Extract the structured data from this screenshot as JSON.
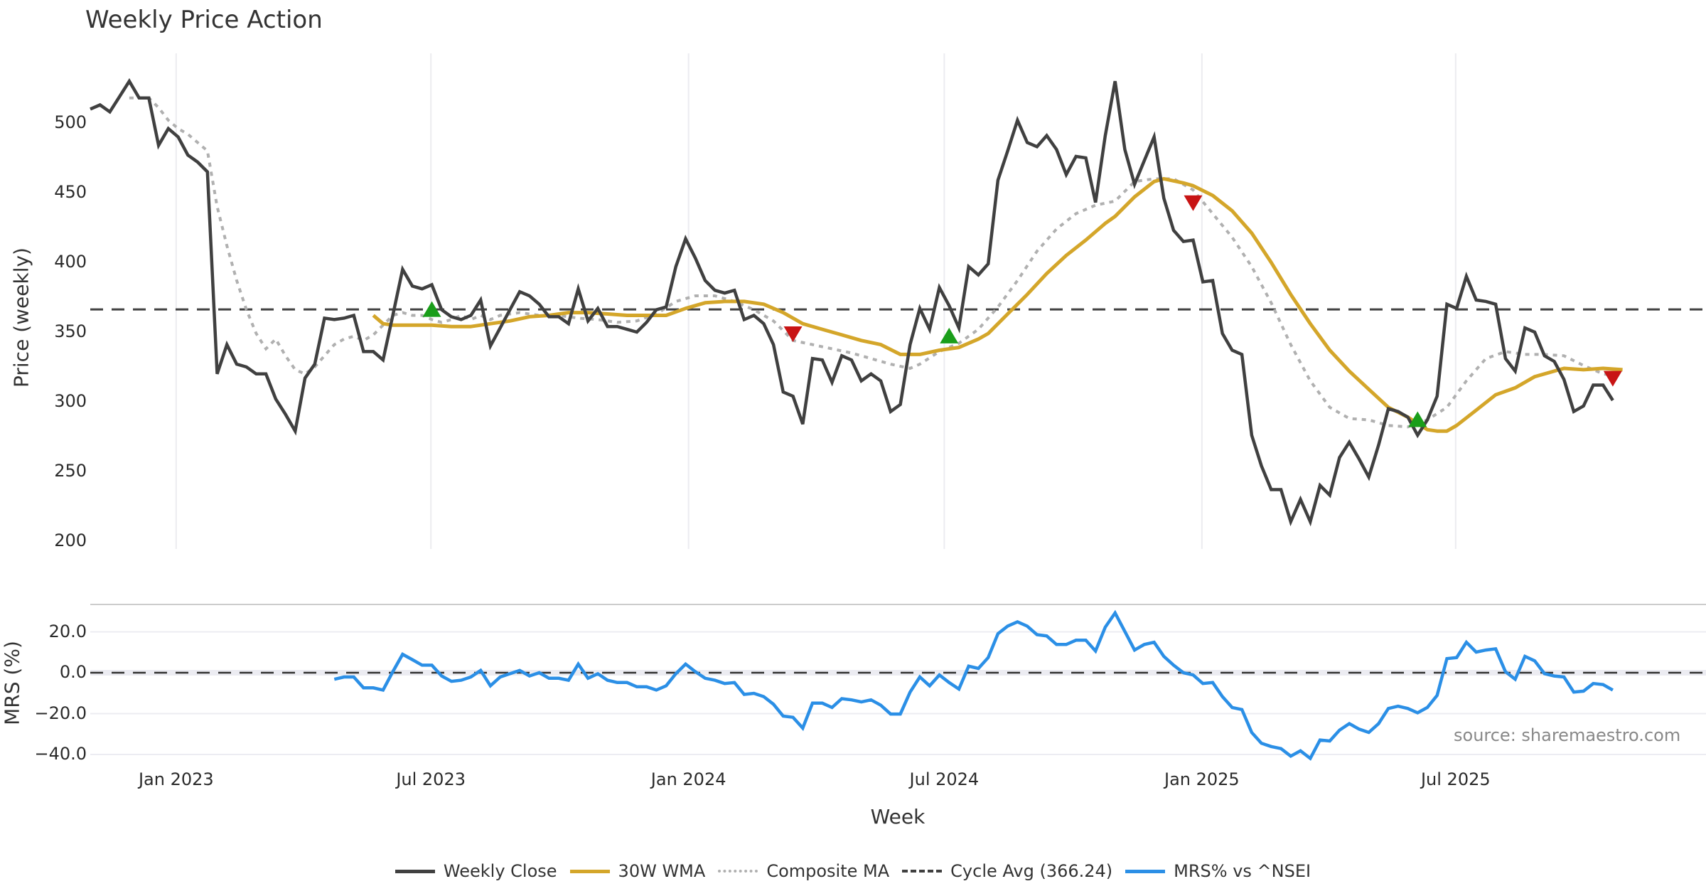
{
  "chart_data": {
    "type": "line",
    "title": "Weekly Price Action",
    "xlabel": "Week",
    "ylabel": "Price (weekly)",
    "ylabel_lower": "MRS (%)",
    "x_unit": "week index (0 = first plotted week)",
    "xlim": [
      0,
      157
    ],
    "ylim": [
      200,
      540
    ],
    "ylim_lower": [
      -45,
      32
    ],
    "yticks": [
      200,
      250,
      300,
      350,
      400,
      450,
      500
    ],
    "yticks_lower": [
      {
        "value": 20,
        "label": "20.0"
      },
      {
        "value": 0,
        "label": "0.0"
      },
      {
        "value": -20,
        "label": "−20.0"
      },
      {
        "value": -40,
        "label": "−40.0"
      }
    ],
    "xticks": [
      {
        "week": 8.8,
        "label": "Jan 2023"
      },
      {
        "week": 34.9,
        "label": "Jul 2023"
      },
      {
        "week": 61.3,
        "label": "Jan 2024"
      },
      {
        "week": 87.5,
        "label": "Jul 2024"
      },
      {
        "week": 113.9,
        "label": "Jan 2025"
      },
      {
        "week": 139.9,
        "label": "Jul 2025"
      }
    ],
    "grid": "vertical on x ticks (price panel), horizontal on y ticks (MRS panel)",
    "legend_position": "bottom-center",
    "source_note": "source: sharemaestro.com",
    "cycle_avg": 366.24,
    "series": [
      {
        "name": "Weekly Close",
        "color": "#404040",
        "style": "solid",
        "start_week": 0,
        "values": [
          510,
          513,
          508,
          519,
          530,
          518,
          518,
          484,
          496,
          490,
          477,
          472,
          465,
          320,
          341,
          327,
          325,
          320,
          320,
          302,
          291,
          279,
          317,
          327,
          360,
          359,
          360,
          362,
          336,
          336,
          330,
          362,
          395,
          383,
          381,
          384,
          366,
          361,
          359,
          362,
          373,
          340,
          353,
          366,
          379,
          376,
          370,
          361,
          361,
          356,
          381,
          358,
          367,
          354,
          354,
          352,
          350,
          357,
          366,
          368,
          397,
          417,
          403,
          387,
          380,
          378,
          380,
          359,
          362,
          356,
          341,
          307,
          304,
          284,
          331,
          330,
          314,
          333,
          330,
          315,
          320,
          315,
          293,
          298,
          341,
          367,
          352,
          382,
          369,
          353,
          397,
          391,
          399,
          459,
          480,
          502,
          486,
          483,
          491,
          481,
          463,
          476,
          475,
          443,
          491,
          530,
          481,
          456,
          473,
          490,
          446,
          423,
          415,
          416,
          386,
          387,
          349,
          337,
          334,
          276,
          254,
          237,
          237,
          214,
          230,
          214,
          240,
          233,
          260,
          271,
          259,
          246,
          269,
          295,
          293,
          289,
          276,
          287,
          304,
          370,
          367,
          390,
          373,
          372,
          370,
          331,
          322,
          353,
          350,
          333,
          329,
          316,
          293,
          297,
          312,
          312,
          301
        ]
      },
      {
        "name": "30W WMA",
        "color": "#d4a62a",
        "style": "solid",
        "points": [
          [
            29,
            362
          ],
          [
            30,
            356
          ],
          [
            31,
            355
          ],
          [
            33,
            355
          ],
          [
            35,
            355
          ],
          [
            37,
            354
          ],
          [
            39,
            354
          ],
          [
            41,
            356
          ],
          [
            43,
            358
          ],
          [
            45,
            361
          ],
          [
            47,
            362
          ],
          [
            49,
            364
          ],
          [
            51,
            364
          ],
          [
            53,
            363
          ],
          [
            55,
            362
          ],
          [
            57,
            362
          ],
          [
            59,
            362
          ],
          [
            61,
            367
          ],
          [
            63,
            371
          ],
          [
            65,
            372
          ],
          [
            67,
            372
          ],
          [
            69,
            370
          ],
          [
            71,
            364
          ],
          [
            73,
            356
          ],
          [
            75,
            352
          ],
          [
            77,
            348
          ],
          [
            79,
            344
          ],
          [
            81,
            341
          ],
          [
            83,
            334
          ],
          [
            85,
            334
          ],
          [
            87,
            337
          ],
          [
            89,
            339
          ],
          [
            91,
            345
          ],
          [
            92,
            349
          ],
          [
            94,
            363
          ],
          [
            96,
            377
          ],
          [
            98,
            392
          ],
          [
            100,
            405
          ],
          [
            102,
            416
          ],
          [
            104,
            428
          ],
          [
            105,
            433
          ],
          [
            107,
            447
          ],
          [
            109,
            458
          ],
          [
            110,
            460
          ],
          [
            112,
            457
          ],
          [
            113,
            455
          ],
          [
            115,
            448
          ],
          [
            117,
            437
          ],
          [
            119,
            421
          ],
          [
            121,
            400
          ],
          [
            123,
            377
          ],
          [
            125,
            356
          ],
          [
            127,
            337
          ],
          [
            129,
            322
          ],
          [
            131,
            309
          ],
          [
            133,
            296
          ],
          [
            135,
            289
          ],
          [
            137,
            280
          ],
          [
            138,
            279
          ],
          [
            139,
            279
          ],
          [
            140,
            283
          ],
          [
            142,
            294
          ],
          [
            144,
            305
          ],
          [
            146,
            310
          ],
          [
            148,
            318
          ],
          [
            150,
            322
          ],
          [
            151,
            324
          ],
          [
            153,
            323
          ],
          [
            155,
            324
          ],
          [
            157,
            323
          ]
        ]
      },
      {
        "name": "Composite MA",
        "color": "#b0b0b0",
        "style": "dotted",
        "points": [
          [
            4,
            518
          ],
          [
            6,
            518
          ],
          [
            7,
            511
          ],
          [
            8,
            502
          ],
          [
            9,
            496
          ],
          [
            10,
            492
          ],
          [
            11,
            486
          ],
          [
            12,
            480
          ],
          [
            13,
            440
          ],
          [
            14,
            412
          ],
          [
            15,
            387
          ],
          [
            16,
            366
          ],
          [
            17,
            349
          ],
          [
            18,
            338
          ],
          [
            19,
            345
          ],
          [
            20,
            333
          ],
          [
            21,
            323
          ],
          [
            22,
            320
          ],
          [
            23,
            325
          ],
          [
            24,
            333
          ],
          [
            25,
            341
          ],
          [
            26,
            345
          ],
          [
            27,
            347
          ],
          [
            28,
            344
          ],
          [
            29,
            348
          ],
          [
            30,
            355
          ],
          [
            31,
            362
          ],
          [
            32,
            364
          ],
          [
            33,
            362
          ],
          [
            34,
            362
          ],
          [
            35,
            359
          ],
          [
            36,
            357
          ],
          [
            37,
            359
          ],
          [
            38,
            362
          ],
          [
            39,
            359
          ],
          [
            40,
            362
          ],
          [
            41,
            359
          ],
          [
            42,
            362
          ],
          [
            44,
            364
          ],
          [
            46,
            362
          ],
          [
            48,
            362
          ],
          [
            50,
            360
          ],
          [
            52,
            359
          ],
          [
            54,
            357
          ],
          [
            56,
            358
          ],
          [
            58,
            363
          ],
          [
            60,
            372
          ],
          [
            62,
            376
          ],
          [
            64,
            376
          ],
          [
            66,
            372
          ],
          [
            68,
            366
          ],
          [
            70,
            358
          ],
          [
            72,
            344
          ],
          [
            74,
            341
          ],
          [
            76,
            338
          ],
          [
            78,
            335
          ],
          [
            80,
            331
          ],
          [
            82,
            327
          ],
          [
            84,
            324
          ],
          [
            85,
            327
          ],
          [
            87,
            336
          ],
          [
            89,
            342
          ],
          [
            91,
            352
          ],
          [
            93,
            368
          ],
          [
            95,
            387
          ],
          [
            97,
            408
          ],
          [
            99,
            424
          ],
          [
            101,
            435
          ],
          [
            103,
            441
          ],
          [
            105,
            444
          ],
          [
            107,
            458
          ],
          [
            109,
            460
          ],
          [
            111,
            460
          ],
          [
            113,
            452
          ],
          [
            115,
            435
          ],
          [
            117,
            418
          ],
          [
            119,
            397
          ],
          [
            121,
            371
          ],
          [
            123,
            341
          ],
          [
            125,
            315
          ],
          [
            127,
            296
          ],
          [
            129,
            288
          ],
          [
            131,
            287
          ],
          [
            133,
            283
          ],
          [
            135,
            282
          ],
          [
            137,
            287
          ],
          [
            139,
            296
          ],
          [
            141,
            315
          ],
          [
            143,
            331
          ],
          [
            145,
            336
          ],
          [
            147,
            334
          ],
          [
            149,
            334
          ],
          [
            151,
            333
          ],
          [
            153,
            326
          ],
          [
            155,
            320
          ],
          [
            157,
            318
          ]
        ]
      },
      {
        "name": "Cycle Avg (366.24)",
        "color": "#404040",
        "style": "dashed",
        "value": 366.24
      },
      {
        "name": "MRS% vs ^NSEI",
        "color": "#2b8fe6",
        "style": "solid",
        "panel": "lower",
        "start_week": 25,
        "values": [
          -3.2,
          -2.1,
          -2.1,
          -7.4,
          -7.4,
          -8.5,
          0.5,
          9.0,
          6.4,
          3.7,
          3.7,
          -1.6,
          -4.2,
          -3.7,
          -2.1,
          1.1,
          -6.4,
          -2.1,
          -0.5,
          1.1,
          -1.6,
          0,
          -2.7,
          -2.7,
          -3.7,
          4.2,
          -2.7,
          -0.5,
          -3.7,
          -4.8,
          -4.8,
          -6.9,
          -6.9,
          -8.5,
          -6.4,
          -0.5,
          4.2,
          0.5,
          -2.7,
          -3.7,
          -5.3,
          -4.8,
          -10.6,
          -10.1,
          -11.7,
          -15.4,
          -21.2,
          -21.8,
          -27.1,
          -14.9,
          -14.9,
          -17.0,
          -12.7,
          -13.3,
          -14.3,
          -13.3,
          -15.9,
          -20.2,
          -20.2,
          -9.5,
          -2.1,
          -6.4,
          -1.1,
          -4.8,
          -8.0,
          3.2,
          2.1,
          7.4,
          19.1,
          22.8,
          24.9,
          22.8,
          18.6,
          18.0,
          13.8,
          13.8,
          15.9,
          15.9,
          10.6,
          22.3,
          29.2,
          20.2,
          11.1,
          13.8,
          14.9,
          8.0,
          3.7,
          0,
          -1.1,
          -5.3,
          -4.8,
          -11.7,
          -17.0,
          -18.0,
          -29.2,
          -34.5,
          -36.1,
          -37.1,
          -40.8,
          -38.2,
          -41.9,
          -32.9,
          -33.4,
          -28.1,
          -24.9,
          -27.6,
          -29.2,
          -24.9,
          -17.5,
          -16.4,
          -17.5,
          -19.6,
          -17.0,
          -11.1,
          6.9,
          7.4,
          14.9,
          10.1,
          11.1,
          11.7,
          0.5,
          -3.2,
          8.0,
          5.8,
          -0.5,
          -1.6,
          -2.1,
          -9.5,
          -9.0,
          -5.3,
          -5.8,
          -8.5
        ]
      }
    ],
    "zero_line_lower": 0,
    "signals": [
      {
        "type": "buy",
        "week": 35,
        "price": 366,
        "color": "#1a9e1a"
      },
      {
        "type": "sell",
        "week": 72,
        "price": 349,
        "color": "#c81414"
      },
      {
        "type": "buy",
        "week": 88,
        "price": 347,
        "color": "#1a9e1a"
      },
      {
        "type": "sell",
        "week": 113,
        "price": 443,
        "color": "#c81414"
      },
      {
        "type": "buy",
        "week": 136,
        "price": 287,
        "color": "#1a9e1a"
      },
      {
        "type": "sell",
        "week": 156,
        "price": 317,
        "color": "#c81414"
      }
    ]
  },
  "legend": [
    {
      "label": "Weekly Close",
      "color": "#404040",
      "style": "solid"
    },
    {
      "label": "30W WMA",
      "color": "#d4a62a",
      "style": "solid"
    },
    {
      "label": "Composite MA",
      "color": "#b0b0b0",
      "style": "dotted"
    },
    {
      "label": "Cycle Avg (366.24)",
      "color": "#404040",
      "style": "dashed"
    },
    {
      "label": "MRS% vs ^NSEI",
      "color": "#2b8fe6",
      "style": "solid"
    }
  ]
}
